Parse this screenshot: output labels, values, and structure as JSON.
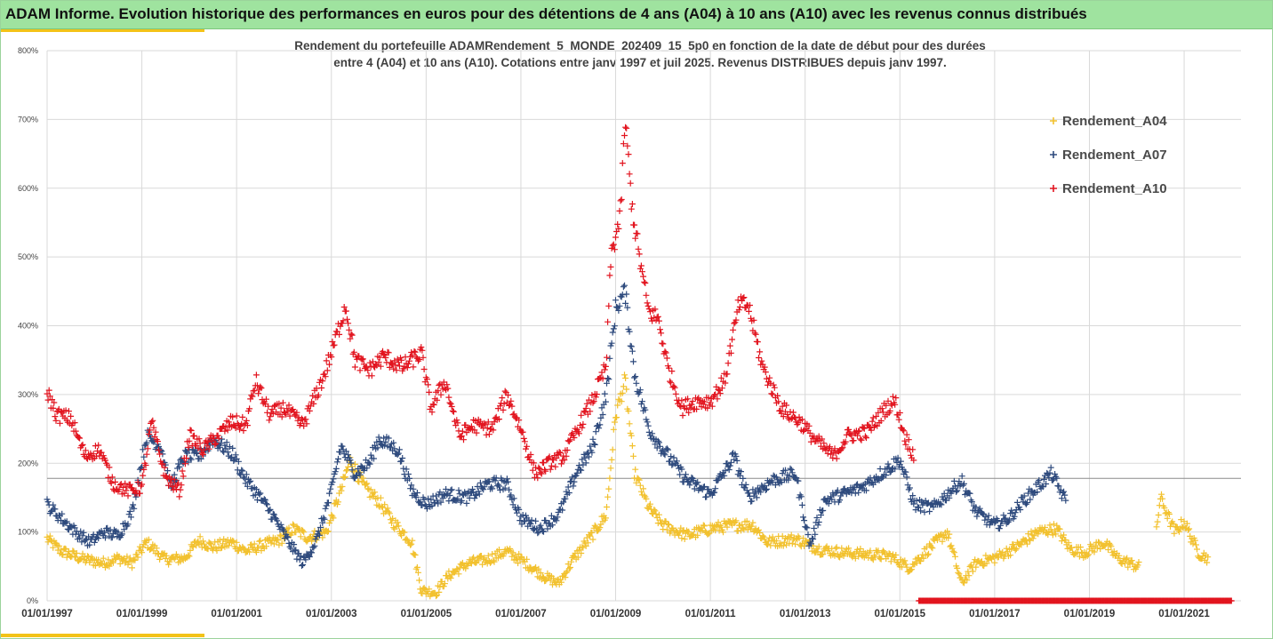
{
  "header": {
    "title": "ADAM Informe. Evolution historique des performances en euros pour des détentions de 4 ans (A04) à 10 ans (A10) avec les revenus connus distribués"
  },
  "chart_data": {
    "type": "scatter",
    "title_line1": "Rendement du portefeuille ADAMRendement_5_MONDE_202409_15_5p0 en fonction de la date de début pour des durées",
    "title_line2": "entre 4 (A04) et 10 ans (A10). Cotations entre janv 1997 et juil 2025. Revenus DISTRIBUES depuis janv 1997.",
    "xlim": [
      1997.0,
      2022.2
    ],
    "ylim": [
      0,
      8
    ],
    "y_ticks": [
      "0%",
      "100%",
      "200%",
      "300%",
      "400%",
      "500%",
      "600%",
      "700%",
      "800%"
    ],
    "x_ticks": [
      "01/01/1997",
      "01/01/1999",
      "01/01/2001",
      "01/01/2003",
      "01/01/2005",
      "01/01/2007",
      "01/01/2009",
      "01/01/2011",
      "01/01/2013",
      "01/01/2015",
      "01/01/2017",
      "01/01/2019",
      "01/01/2021"
    ],
    "x_tick_years": [
      1997,
      1999,
      2001,
      2003,
      2005,
      2007,
      2009,
      2011,
      2013,
      2015,
      2017,
      2019,
      2021
    ],
    "reference_line_y": 1.78,
    "grid": true,
    "legend_placement": "right",
    "series": [
      {
        "name": "Rendement_A04",
        "color": "#f2c12e",
        "start": 1997.0,
        "end": 2021.5,
        "anchors": [
          [
            1997.0,
            0.9
          ],
          [
            1997.3,
            0.72
          ],
          [
            1997.8,
            0.6
          ],
          [
            1998.2,
            0.55
          ],
          [
            1998.5,
            0.62
          ],
          [
            1998.8,
            0.55
          ],
          [
            1999.1,
            0.85
          ],
          [
            1999.5,
            0.6
          ],
          [
            1999.9,
            0.62
          ],
          [
            2000.2,
            0.88
          ],
          [
            2000.5,
            0.78
          ],
          [
            2000.9,
            0.85
          ],
          [
            2001.2,
            0.72
          ],
          [
            2001.5,
            0.8
          ],
          [
            2001.9,
            0.88
          ],
          [
            2002.2,
            1.05
          ],
          [
            2002.5,
            0.92
          ],
          [
            2002.9,
            1.0
          ],
          [
            2003.2,
            1.6
          ],
          [
            2003.4,
            2.05
          ],
          [
            2003.7,
            1.65
          ],
          [
            2004.0,
            1.45
          ],
          [
            2004.3,
            1.15
          ],
          [
            2004.7,
            0.85
          ],
          [
            2004.9,
            0.15
          ],
          [
            2005.2,
            0.12
          ],
          [
            2005.5,
            0.38
          ],
          [
            2005.9,
            0.55
          ],
          [
            2006.3,
            0.6
          ],
          [
            2006.7,
            0.72
          ],
          [
            2007.1,
            0.55
          ],
          [
            2007.5,
            0.35
          ],
          [
            2007.8,
            0.25
          ],
          [
            2008.1,
            0.6
          ],
          [
            2008.5,
            0.95
          ],
          [
            2008.8,
            1.25
          ],
          [
            2009.0,
            2.7
          ],
          [
            2009.2,
            3.2
          ],
          [
            2009.4,
            1.85
          ],
          [
            2009.7,
            1.35
          ],
          [
            2010.0,
            1.1
          ],
          [
            2010.5,
            0.95
          ],
          [
            2011.0,
            1.05
          ],
          [
            2011.5,
            1.1
          ],
          [
            2011.9,
            1.1
          ],
          [
            2012.2,
            0.85
          ],
          [
            2012.8,
            0.9
          ],
          [
            2013.3,
            0.75
          ],
          [
            2013.8,
            0.7
          ],
          [
            2014.2,
            0.68
          ],
          [
            2014.8,
            0.65
          ],
          [
            2015.2,
            0.48
          ],
          [
            2015.6,
            0.75
          ],
          [
            2016.0,
            1.0
          ],
          [
            2016.3,
            0.25
          ],
          [
            2016.6,
            0.55
          ],
          [
            2017.0,
            0.62
          ],
          [
            2017.5,
            0.8
          ],
          [
            2017.9,
            1.0
          ],
          [
            2018.3,
            1.05
          ],
          [
            2018.6,
            0.75
          ],
          [
            2018.9,
            0.7
          ],
          [
            2019.3,
            0.85
          ],
          [
            2019.6,
            0.62
          ],
          [
            2020.0,
            0.5
          ],
          [
            2020.3,
            0.45
          ],
          [
            2020.5,
            1.5
          ],
          [
            2020.8,
            1.0
          ],
          [
            2021.0,
            1.15
          ],
          [
            2021.3,
            0.7
          ],
          [
            2021.5,
            0.62
          ]
        ],
        "gaps": [
          [
            2020.05,
            2020.4
          ]
        ]
      },
      {
        "name": "Rendement_A07",
        "color": "#2e4a7d",
        "start": 1997.0,
        "end": 2018.5,
        "anchors": [
          [
            1997.0,
            1.4
          ],
          [
            1997.3,
            1.2
          ],
          [
            1997.6,
            1.0
          ],
          [
            1997.9,
            0.85
          ],
          [
            1998.2,
            1.0
          ],
          [
            1998.5,
            0.95
          ],
          [
            1998.8,
            1.3
          ],
          [
            1999.1,
            2.4
          ],
          [
            1999.4,
            2.25
          ],
          [
            1999.6,
            1.65
          ],
          [
            1999.9,
            2.1
          ],
          [
            2000.2,
            2.1
          ],
          [
            2000.5,
            2.35
          ],
          [
            2000.9,
            2.15
          ],
          [
            2001.2,
            1.75
          ],
          [
            2001.5,
            1.5
          ],
          [
            2001.8,
            1.2
          ],
          [
            2002.1,
            0.85
          ],
          [
            2002.4,
            0.55
          ],
          [
            2002.7,
            0.9
          ],
          [
            2003.0,
            1.6
          ],
          [
            2003.2,
            2.25
          ],
          [
            2003.5,
            1.85
          ],
          [
            2003.8,
            2.0
          ],
          [
            2004.0,
            2.35
          ],
          [
            2004.4,
            2.2
          ],
          [
            2004.7,
            1.6
          ],
          [
            2005.0,
            1.4
          ],
          [
            2005.4,
            1.55
          ],
          [
            2005.9,
            1.5
          ],
          [
            2006.3,
            1.7
          ],
          [
            2006.7,
            1.7
          ],
          [
            2007.0,
            1.2
          ],
          [
            2007.4,
            1.05
          ],
          [
            2007.8,
            1.25
          ],
          [
            2008.2,
            1.9
          ],
          [
            2008.5,
            2.2
          ],
          [
            2008.8,
            3.0
          ],
          [
            2009.0,
            4.25
          ],
          [
            2009.2,
            4.5
          ],
          [
            2009.4,
            3.3
          ],
          [
            2009.7,
            2.5
          ],
          [
            2010.0,
            2.2
          ],
          [
            2010.5,
            1.75
          ],
          [
            2011.0,
            1.55
          ],
          [
            2011.5,
            2.1
          ],
          [
            2011.8,
            1.5
          ],
          [
            2012.3,
            1.75
          ],
          [
            2012.8,
            1.85
          ],
          [
            2013.1,
            0.8
          ],
          [
            2013.4,
            1.45
          ],
          [
            2013.8,
            1.55
          ],
          [
            2014.2,
            1.65
          ],
          [
            2014.7,
            1.9
          ],
          [
            2015.0,
            2.05
          ],
          [
            2015.3,
            1.4
          ],
          [
            2015.7,
            1.35
          ],
          [
            2016.0,
            1.55
          ],
          [
            2016.3,
            1.75
          ],
          [
            2016.6,
            1.3
          ],
          [
            2017.0,
            1.1
          ],
          [
            2017.3,
            1.2
          ],
          [
            2017.6,
            1.45
          ],
          [
            2017.9,
            1.65
          ],
          [
            2018.2,
            1.85
          ],
          [
            2018.5,
            1.45
          ]
        ],
        "gaps": []
      },
      {
        "name": "Rendement_A10",
        "color": "#e2141f",
        "start": 1997.0,
        "end": 2015.3,
        "anchors": [
          [
            1997.0,
            3.05
          ],
          [
            1997.2,
            2.7
          ],
          [
            1997.5,
            2.65
          ],
          [
            1997.8,
            2.1
          ],
          [
            1998.1,
            2.2
          ],
          [
            1998.4,
            1.7
          ],
          [
            1998.7,
            1.6
          ],
          [
            1999.0,
            1.65
          ],
          [
            1999.2,
            2.6
          ],
          [
            1999.5,
            1.8
          ],
          [
            1999.8,
            1.6
          ],
          [
            2000.0,
            2.4
          ],
          [
            2000.3,
            2.2
          ],
          [
            2000.6,
            2.4
          ],
          [
            2000.9,
            2.6
          ],
          [
            2001.2,
            2.55
          ],
          [
            2001.4,
            3.2
          ],
          [
            2001.7,
            2.7
          ],
          [
            2002.0,
            2.8
          ],
          [
            2002.4,
            2.55
          ],
          [
            2002.8,
            3.2
          ],
          [
            2003.0,
            3.6
          ],
          [
            2003.3,
            4.3
          ],
          [
            2003.5,
            3.5
          ],
          [
            2003.8,
            3.35
          ],
          [
            2004.1,
            3.55
          ],
          [
            2004.5,
            3.4
          ],
          [
            2004.9,
            3.6
          ],
          [
            2005.1,
            2.8
          ],
          [
            2005.4,
            3.2
          ],
          [
            2005.7,
            2.4
          ],
          [
            2006.0,
            2.55
          ],
          [
            2006.4,
            2.5
          ],
          [
            2006.7,
            3.0
          ],
          [
            2007.0,
            2.5
          ],
          [
            2007.3,
            1.85
          ],
          [
            2007.6,
            2.0
          ],
          [
            2007.9,
            2.1
          ],
          [
            2008.2,
            2.5
          ],
          [
            2008.5,
            2.9
          ],
          [
            2008.8,
            3.4
          ],
          [
            2008.9,
            5.0
          ],
          [
            2009.1,
            5.6
          ],
          [
            2009.2,
            7.0
          ],
          [
            2009.35,
            5.7
          ],
          [
            2009.5,
            5.0
          ],
          [
            2009.7,
            4.2
          ],
          [
            2009.9,
            4.1
          ],
          [
            2010.1,
            3.4
          ],
          [
            2010.4,
            2.8
          ],
          [
            2010.7,
            2.9
          ],
          [
            2011.0,
            2.9
          ],
          [
            2011.3,
            3.2
          ],
          [
            2011.6,
            4.3
          ],
          [
            2011.8,
            4.3
          ],
          [
            2012.1,
            3.4
          ],
          [
            2012.5,
            2.8
          ],
          [
            2012.9,
            2.6
          ],
          [
            2013.2,
            2.35
          ],
          [
            2013.6,
            2.1
          ],
          [
            2013.9,
            2.4
          ],
          [
            2014.3,
            2.45
          ],
          [
            2014.7,
            2.8
          ],
          [
            2014.9,
            2.9
          ],
          [
            2015.1,
            2.4
          ],
          [
            2015.3,
            2.1
          ]
        ],
        "gaps": []
      }
    ],
    "zero_band": {
      "color": "#e2141f",
      "start": 2015.4,
      "end": 2022.0,
      "y": 0
    }
  }
}
